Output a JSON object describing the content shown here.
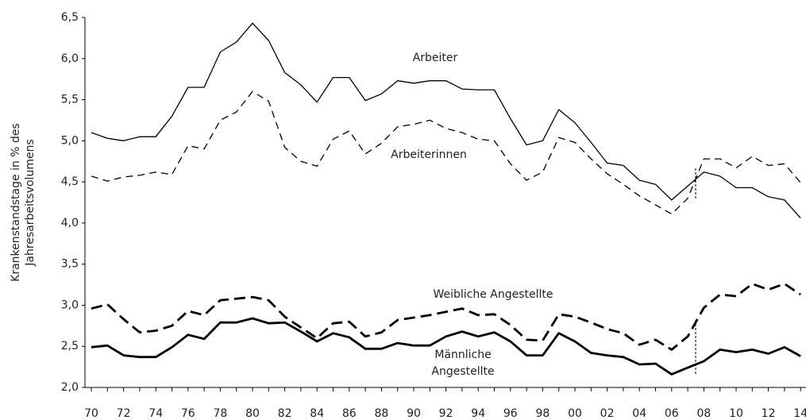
{
  "chart_data": {
    "type": "line",
    "y_label": [
      "Krankenstandstage in % des",
      "Jahresarbeitsvolumens"
    ],
    "annotations": [
      "Arbeiter",
      "Arbeiterinnen",
      "Weibliche Angestellte",
      "Männliche",
      "Angestellte"
    ],
    "categories": [
      "70",
      null,
      "72",
      null,
      "74",
      null,
      "76",
      null,
      "78",
      null,
      "80",
      null,
      "82",
      null,
      "84",
      null,
      "86",
      null,
      "88",
      null,
      "90",
      null,
      "92",
      null,
      "94",
      null,
      "96",
      null,
      "98",
      null,
      "00",
      null,
      "02",
      null,
      "04",
      null,
      "06",
      null,
      "08",
      null,
      "10",
      null,
      "12",
      null,
      "14"
    ],
    "ylim": [
      2,
      6.5
    ],
    "yticks": [
      {
        "value": 2,
        "label": "2,0"
      },
      {
        "value": 2.5,
        "label": "2,5"
      },
      {
        "value": 3,
        "label": "3,0"
      },
      {
        "value": 3.5,
        "label": "3,5"
      },
      {
        "value": 4,
        "label": "4,0"
      },
      {
        "value": 4.5,
        "label": "4,5"
      },
      {
        "value": 5,
        "label": "5,0"
      },
      {
        "value": 5.5,
        "label": "5,5"
      },
      {
        "value": 6,
        "label": "6,0"
      },
      {
        "value": 6.5,
        "label": "6,5"
      }
    ],
    "grid": false,
    "series": [
      {
        "color": "#000000",
        "style": "solid",
        "weight": "thin",
        "values": [
          5.1,
          5.03,
          5.0,
          5.05,
          5.05,
          5.3,
          5.65,
          5.65,
          6.08,
          6.2,
          6.43,
          6.22,
          5.83,
          5.68,
          5.47,
          5.77,
          5.77,
          5.49,
          5.57,
          5.73,
          5.7,
          5.73,
          5.73,
          5.63,
          5.62,
          5.62,
          5.27,
          4.95,
          5.0,
          5.38,
          5.22,
          4.98,
          4.73,
          4.7,
          4.52,
          4.47,
          4.28,
          4.45,
          4.62,
          4.57,
          4.43,
          4.43,
          4.32,
          4.28,
          4.06
        ]
      },
      {
        "color": "#000000",
        "style": "dashed",
        "weight": "thin",
        "values": [
          4.57,
          4.51,
          4.56,
          4.58,
          4.62,
          4.59,
          4.94,
          4.9,
          5.25,
          5.35,
          5.6,
          5.48,
          4.92,
          4.75,
          4.69,
          5.02,
          5.12,
          4.84,
          4.97,
          5.17,
          5.2,
          5.25,
          5.15,
          5.1,
          5.02,
          5.0,
          4.72,
          4.52,
          4.62,
          5.04,
          4.98,
          4.78,
          4.6,
          4.47,
          4.33,
          4.22,
          4.11,
          4.3,
          4.78,
          4.78,
          4.67,
          4.81,
          4.7,
          4.72,
          4.49
        ]
      },
      {
        "color": "#000000",
        "style": "dashed",
        "weight": "bold",
        "values": [
          2.96,
          3.01,
          2.83,
          2.67,
          2.69,
          2.75,
          2.93,
          2.88,
          3.06,
          3.08,
          3.1,
          3.06,
          2.86,
          2.73,
          2.6,
          2.78,
          2.8,
          2.62,
          2.67,
          2.82,
          2.85,
          2.88,
          2.92,
          2.96,
          2.88,
          2.89,
          2.76,
          2.58,
          2.57,
          2.89,
          2.86,
          2.79,
          2.71,
          2.66,
          2.52,
          2.58,
          2.46,
          2.62,
          2.97,
          3.13,
          3.11,
          3.26,
          3.19,
          3.26,
          3.13
        ]
      },
      {
        "color": "#000000",
        "style": "solid",
        "weight": "bold",
        "values": [
          2.49,
          2.51,
          2.39,
          2.37,
          2.37,
          2.49,
          2.64,
          2.59,
          2.79,
          2.79,
          2.84,
          2.78,
          2.79,
          2.68,
          2.56,
          2.66,
          2.61,
          2.47,
          2.47,
          2.54,
          2.51,
          2.51,
          2.62,
          2.68,
          2.62,
          2.67,
          2.56,
          2.39,
          2.39,
          2.66,
          2.56,
          2.42,
          2.39,
          2.37,
          2.28,
          2.29,
          2.16,
          2.24,
          2.32,
          2.46,
          2.43,
          2.46,
          2.41,
          2.49,
          2.38
        ]
      }
    ]
  }
}
